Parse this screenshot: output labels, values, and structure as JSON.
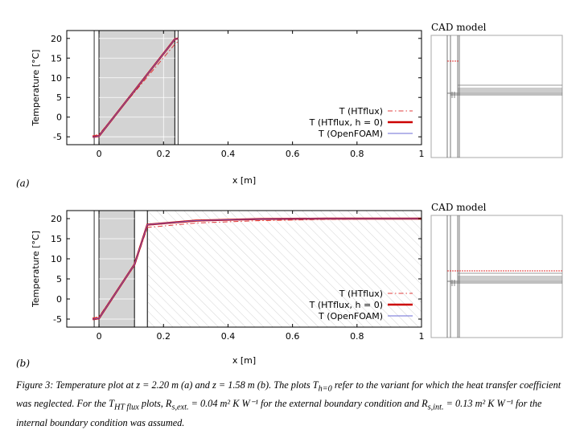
{
  "chart_data": [
    {
      "type": "line",
      "panel_label": "(a)",
      "xlabel": "x [m]",
      "ylabel": "Temperature [°C]",
      "xlim": [
        -0.1,
        1.0
      ],
      "ylim": [
        -7,
        22
      ],
      "x_ticks": [
        0,
        0.2,
        0.4,
        0.6,
        0.8,
        1.0
      ],
      "x_tick_labels": [
        "0",
        "0.2",
        "0.4",
        "0.6",
        "0.8",
        "1"
      ],
      "y_ticks": [
        -5,
        0,
        5,
        10,
        15,
        20
      ],
      "y_tick_labels": [
        "-5",
        "0",
        "5",
        "10",
        "15",
        "20"
      ],
      "shaded_layers": [
        {
          "x0": -0.015,
          "x1": 0.0,
          "fill": "none"
        },
        {
          "x0": 0.0,
          "x1": 0.235,
          "fill": "gray"
        },
        {
          "x0": 0.235,
          "x1": 0.245,
          "fill": "none"
        }
      ],
      "series": [
        {
          "name": "T (HTflux)",
          "color": "#e03c3c",
          "style": "dashdot",
          "x": [
            -0.02,
            -0.015,
            0.0,
            0.235,
            0.245
          ],
          "y": [
            -4.7,
            -4.7,
            -4.4,
            18.5,
            19.2
          ]
        },
        {
          "name": "T (HTflux, h = 0)",
          "color": "#cc0000",
          "style": "thick",
          "x": [
            -0.02,
            -0.015,
            0.0,
            0.235,
            0.245
          ],
          "y": [
            -5.0,
            -5.0,
            -4.8,
            19.8,
            20.0
          ]
        },
        {
          "name": "T (OpenFOAM)",
          "color": "#6b6bd6",
          "style": "solid",
          "x": [
            -0.02,
            -0.015,
            0.0,
            0.235,
            0.245
          ],
          "y": [
            -5.0,
            -5.0,
            -4.8,
            19.8,
            20.0
          ]
        }
      ],
      "inset_title": "CAD model"
    },
    {
      "type": "line",
      "panel_label": "(b)",
      "xlabel": "x [m]",
      "ylabel": "Temperature [°C]",
      "xlim": [
        -0.1,
        1.0
      ],
      "ylim": [
        -7,
        22
      ],
      "x_ticks": [
        0,
        0.2,
        0.4,
        0.6,
        0.8,
        1.0
      ],
      "x_tick_labels": [
        "0",
        "0.2",
        "0.4",
        "0.6",
        "0.8",
        "1"
      ],
      "y_ticks": [
        -5,
        0,
        5,
        10,
        15,
        20
      ],
      "y_tick_labels": [
        "-5",
        "0",
        "5",
        "10",
        "15",
        "20"
      ],
      "shaded_layers": [
        {
          "x0": -0.015,
          "x1": 0.0,
          "fill": "none"
        },
        {
          "x0": 0.0,
          "x1": 0.11,
          "fill": "gray"
        },
        {
          "x0": 0.11,
          "x1": 0.15,
          "fill": "none"
        },
        {
          "x0": 0.15,
          "x1": 1.0,
          "fill": "hatch"
        }
      ],
      "series": [
        {
          "name": "T (HTflux)",
          "color": "#e03c3c",
          "style": "dashdot",
          "x": [
            -0.02,
            -0.015,
            0.0,
            0.11,
            0.15,
            0.3,
            0.5,
            0.7,
            1.0
          ],
          "y": [
            -4.7,
            -4.7,
            -4.4,
            8.3,
            17.8,
            18.9,
            19.5,
            19.8,
            20.0
          ]
        },
        {
          "name": "T (HTflux, h = 0)",
          "color": "#cc0000",
          "style": "thick",
          "x": [
            -0.02,
            -0.015,
            0.0,
            0.11,
            0.15,
            0.3,
            0.5,
            0.7,
            1.0
          ],
          "y": [
            -5.0,
            -5.0,
            -4.8,
            8.6,
            18.5,
            19.5,
            19.9,
            20.0,
            20.0
          ]
        },
        {
          "name": "T (OpenFOAM)",
          "color": "#6b6bd6",
          "style": "solid",
          "x": [
            -0.02,
            -0.015,
            0.0,
            0.11,
            0.15,
            0.3,
            0.5,
            0.7,
            1.0
          ],
          "y": [
            -5.0,
            -5.0,
            -4.8,
            8.6,
            18.5,
            19.5,
            19.9,
            20.0,
            20.0
          ]
        }
      ],
      "inset_title": "CAD model"
    }
  ],
  "caption": {
    "text": "Figure 3: Temperature plot at z = 2.20 m (a) and z = 1.58 m (b). The plots T",
    "sub1": "h=0",
    "text2": " refer to the variant for which the heat transfer coefficient was neglected. For the T",
    "sub2": "HT flux",
    "text3": " plots, R",
    "sub3": "s,ext.",
    "text4": " = 0.04 m² K W⁻¹ for the external boundary condition and R",
    "sub4": "s,int.",
    "text5": " = 0.13 m² K W⁻¹ for the internal boundary condition was assumed."
  }
}
